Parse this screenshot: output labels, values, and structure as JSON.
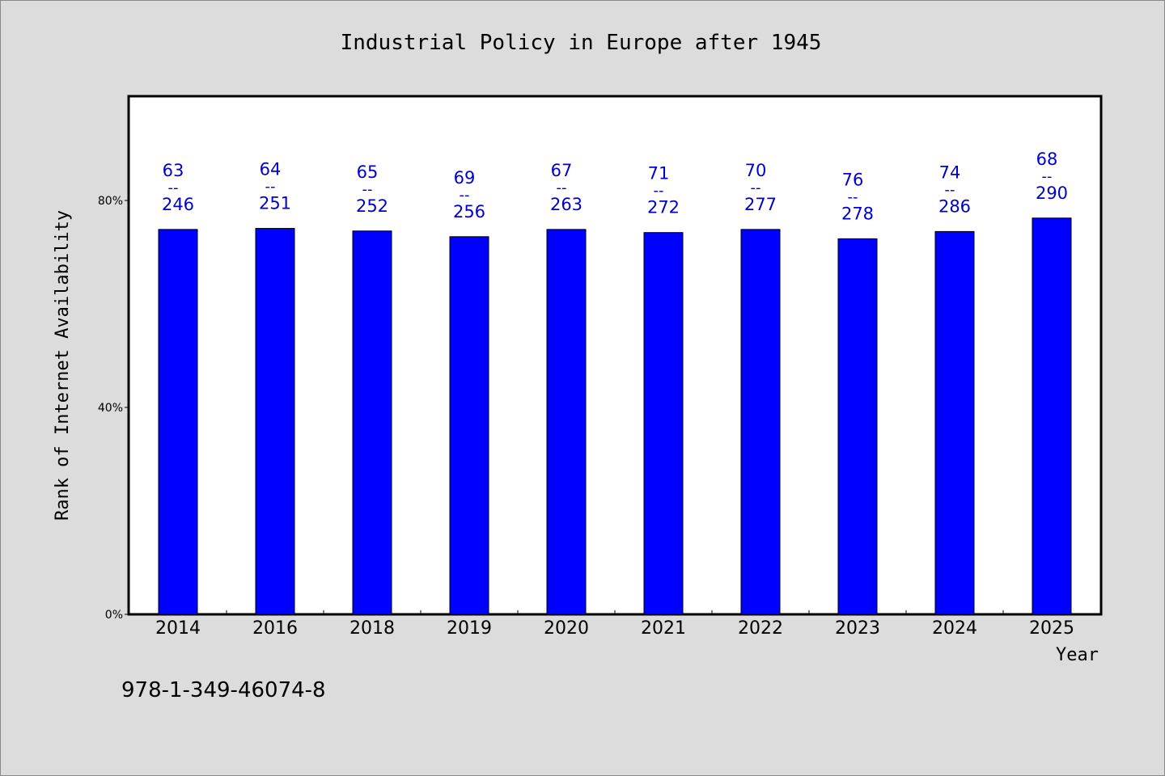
{
  "chart_data": {
    "type": "bar",
    "title": "Industrial Policy in Europe after 1945",
    "xlabel": "Year",
    "ylabel": "Rank of Internet Availability",
    "categories": [
      "2014",
      "2016",
      "2018",
      "2019",
      "2020",
      "2021",
      "2022",
      "2023",
      "2024",
      "2025"
    ],
    "values": [
      74.4,
      74.6,
      74.1,
      73.0,
      74.4,
      73.8,
      74.4,
      72.6,
      74.0,
      76.6
    ],
    "data_labels": [
      {
        "numerator": "63",
        "denominator": "246"
      },
      {
        "numerator": "64",
        "denominator": "251"
      },
      {
        "numerator": "65",
        "denominator": "252"
      },
      {
        "numerator": "69",
        "denominator": "256"
      },
      {
        "numerator": "67",
        "denominator": "263"
      },
      {
        "numerator": "71",
        "denominator": "272"
      },
      {
        "numerator": "70",
        "denominator": "277"
      },
      {
        "numerator": "76",
        "denominator": "278"
      },
      {
        "numerator": "74",
        "denominator": "286"
      },
      {
        "numerator": "68",
        "denominator": "290"
      }
    ],
    "label_separator": "--",
    "yticks": [
      0,
      40,
      80
    ],
    "ytick_labels": [
      "0%",
      "40%",
      "80%"
    ],
    "ylim": [
      0,
      100
    ],
    "grid": false,
    "bar_color": "#0000ff",
    "label_color": "#0000cc"
  },
  "footer_text": "978-1-349-46074-8"
}
